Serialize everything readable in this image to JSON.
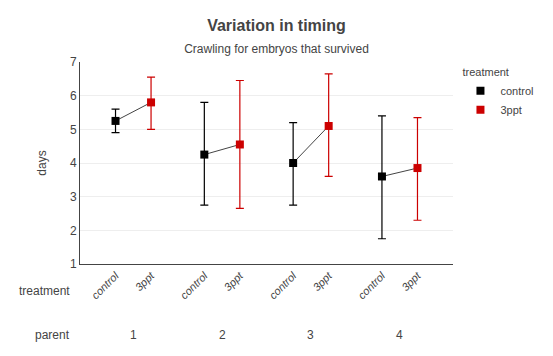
{
  "chart_data": {
    "type": "scatter",
    "title": "Variation in timing",
    "subtitle": "Crawling for embryos that survived",
    "ylabel": "days",
    "xlabel": "parent",
    "xlabel_treatment": "treatment",
    "legend_title": "treatment",
    "categories": [
      "1",
      "2",
      "3",
      "4"
    ],
    "xtick_labels": [
      "control",
      "3ppt",
      "control",
      "3ppt",
      "control",
      "3ppt",
      "control",
      "3ppt"
    ],
    "series": [
      {
        "name": "control",
        "color": "#000000",
        "marker": "square",
        "values": [
          5.25,
          4.25,
          4.0,
          3.6
        ],
        "error_minus": [
          0.35,
          1.5,
          1.25,
          1.85
        ],
        "error_plus": [
          0.35,
          1.55,
          1.2,
          1.8
        ]
      },
      {
        "name": "3ppt",
        "color": "#cc0000",
        "marker": "square",
        "values": [
          5.8,
          4.55,
          5.1,
          3.85
        ],
        "error_minus": [
          0.8,
          1.9,
          1.5,
          1.55
        ],
        "error_plus": [
          0.75,
          1.9,
          1.55,
          1.5
        ]
      }
    ],
    "ylim": [
      1,
      7
    ],
    "yticks": [
      1,
      2,
      3,
      4,
      5,
      6,
      7
    ],
    "grid": true,
    "legend": "upper right"
  }
}
